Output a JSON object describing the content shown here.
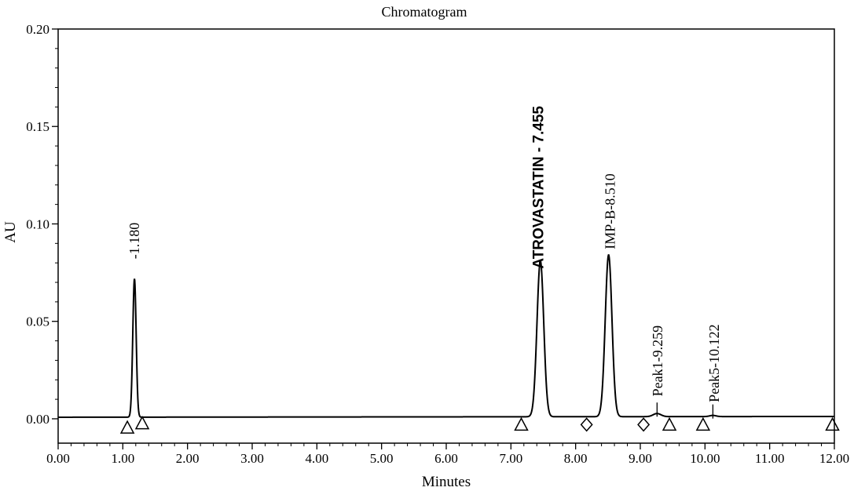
{
  "chart_data": {
    "type": "line",
    "title": "Chromatogram",
    "xlabel": "Minutes",
    "ylabel": "AU",
    "xlim": [
      0.0,
      12.0
    ],
    "ylim": [
      -0.0125,
      0.2
    ],
    "x_ticks": [
      "0.00",
      "1.00",
      "2.00",
      "3.00",
      "4.00",
      "5.00",
      "6.00",
      "7.00",
      "8.00",
      "9.00",
      "10.00",
      "11.00",
      "12.00"
    ],
    "y_ticks": [
      "0.00",
      "0.05",
      "0.10",
      "0.15",
      "0.20"
    ],
    "baseline": {
      "start": 0.0008,
      "end": 0.0012
    },
    "series": [
      {
        "peaks": [
          {
            "rt": 1.18,
            "height": 0.071,
            "sigma": 0.026
          },
          {
            "rt": 7.455,
            "height": 0.08,
            "sigma": 0.052
          },
          {
            "rt": 8.51,
            "height": 0.083,
            "sigma": 0.052
          },
          {
            "rt": 9.259,
            "height": 0.0016,
            "sigma": 0.06
          },
          {
            "rt": 10.122,
            "height": 0.0006,
            "sigma": 0.05
          }
        ]
      }
    ],
    "peak_labels": [
      {
        "text": "-1.180",
        "x": 1.18,
        "y": 0.082,
        "style": "normal"
      },
      {
        "text": "ATROVASTATIN - 7.455",
        "x": 7.43,
        "y": 0.077,
        "style": "bold"
      },
      {
        "text": "IMP-B-8.510",
        "x": 8.53,
        "y": 0.087,
        "style": "normal"
      },
      {
        "text": "Peak1-9.259",
        "x": 9.27,
        "y": 0.0115,
        "style": "normal"
      },
      {
        "text": "Peak5-10.122",
        "x": 10.14,
        "y": 0.0085,
        "style": "normal"
      }
    ],
    "markers": [
      {
        "shape": "triangle",
        "x": 1.07,
        "y": -0.0045
      },
      {
        "shape": "triangle",
        "x": 1.3,
        "y": -0.0023
      },
      {
        "shape": "triangle",
        "x": 7.16,
        "y": -0.003
      },
      {
        "shape": "diamond",
        "x": 8.17,
        "y": -0.003
      },
      {
        "shape": "diamond",
        "x": 9.05,
        "y": -0.003
      },
      {
        "shape": "triangle",
        "x": 9.45,
        "y": -0.003
      },
      {
        "shape": "triangle",
        "x": 9.97,
        "y": -0.003
      },
      {
        "shape": "triangle",
        "x": 11.97,
        "y": -0.003
      }
    ],
    "grid": false,
    "legend": "none",
    "colors": {
      "line": "#000000",
      "axis": "#000000",
      "background": "#ffffff"
    }
  }
}
